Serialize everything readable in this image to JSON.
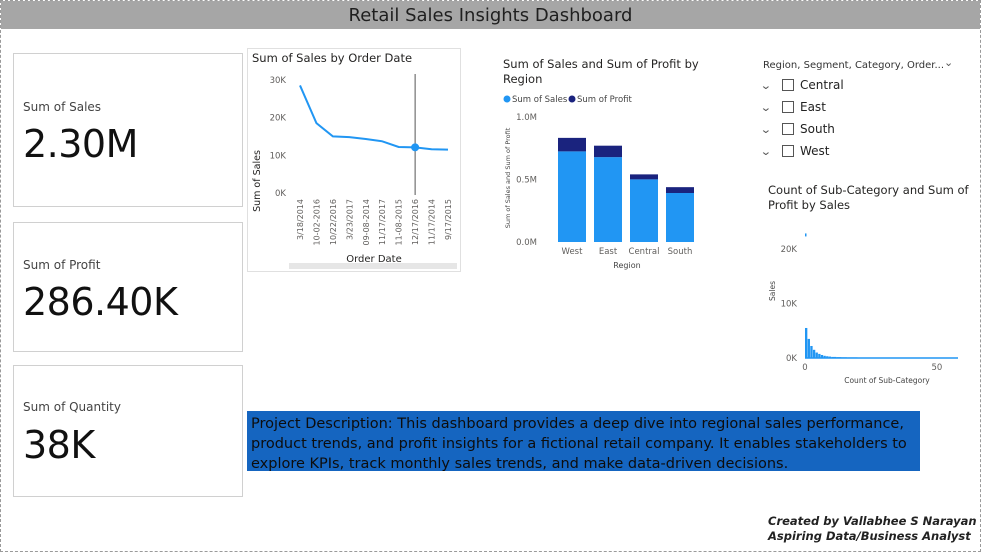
{
  "header": {
    "title": "Retail Sales Insights Dashboard"
  },
  "kpis": [
    {
      "label": "Sum of Sales",
      "value": "2.30M"
    },
    {
      "label": "Sum of Profit",
      "value": "286.40K"
    },
    {
      "label": "Sum of Quantity",
      "value": "38K"
    }
  ],
  "line_chart": {
    "title": "Sum of Sales by Order Date",
    "xlabel": "Order Date",
    "ylabel": "Sum of Sales",
    "yticks": [
      "30K",
      "20K",
      "10K",
      "0K"
    ]
  },
  "bar_chart": {
    "title": "Sum of Sales and Sum of Profit by Region",
    "legend": [
      "Sum of Sales",
      "Sum of Profit"
    ],
    "xlabel": "Region",
    "ylabel": "Sum of Sales and Sum of Profit",
    "yticks": [
      "1.0M",
      "0.5M",
      "0.0M"
    ]
  },
  "slicer": {
    "header": "Region, Segment, Category, Order...",
    "items": [
      "Central",
      "East",
      "South",
      "West"
    ]
  },
  "histogram": {
    "title": "Count of Sub-Category and Sum of Profit by Sales",
    "xlabel": "Count of Sub-Category",
    "ylabel": "Sales",
    "yticks": [
      "20K",
      "10K",
      "0K"
    ],
    "xticks": [
      "0",
      "50"
    ]
  },
  "description": "Project Description: This dashboard provides a deep dive into regional sales performance, product trends, and profit insights for a fictional retail company. It enables stakeholders to explore KPIs, track monthly sales trends, and make data-driven decisions.",
  "credits": [
    "Created by Vallabhee S Narayan",
    "Aspiring Data/Business Analyst"
  ],
  "colors": {
    "sales": "#2196f3",
    "profit": "#1a237e",
    "line": "#2196f3",
    "banner": "#1565c0",
    "title_bar": "#a6a6a6"
  },
  "chart_data": [
    {
      "type": "line",
      "title": "Sum of Sales by Order Date",
      "xlabel": "Order Date",
      "ylabel": "Sum of Sales",
      "categories": [
        "3/18/2014",
        "10-02-2016",
        "10/22/2016",
        "3/23/2017",
        "09-08-2014",
        "11/17/2017",
        "11-08-2015",
        "12/17/2016",
        "11/17/2014",
        "9/17/2015"
      ],
      "values": [
        28500,
        18500,
        15000,
        14800,
        14300,
        13700,
        12200,
        12100,
        11600,
        11500
      ],
      "ylim": [
        0,
        31000
      ],
      "yticks": [
        0,
        10000,
        20000,
        30000
      ],
      "highlight_index": 7
    },
    {
      "type": "bar",
      "title": "Sum of Sales and Sum of Profit by Region",
      "xlabel": "Region",
      "ylabel": "Sum of Sales and Sum of Profit",
      "categories": [
        "West",
        "East",
        "Central",
        "South"
      ],
      "series": [
        {
          "name": "Sum of Sales",
          "values": [
            725000,
            679000,
            501000,
            392000
          ]
        },
        {
          "name": "Sum of Profit",
          "values": [
            108000,
            91500,
            40000,
            46700
          ]
        }
      ],
      "stacked": true,
      "ylim": [
        0,
        1000000
      ],
      "yticks": [
        0,
        500000,
        1000000
      ],
      "legend": "top-left"
    },
    {
      "type": "bar",
      "title": "Count of Sub-Category and Sum of Profit by Sales",
      "xlabel": "Count of Sub-Category",
      "ylabel": "Sales",
      "x": [
        0,
        1,
        2,
        3,
        4,
        5,
        6,
        7,
        8,
        9,
        10,
        12,
        14,
        16,
        20,
        25,
        30,
        35,
        40,
        45,
        50,
        55
      ],
      "values": [
        5500,
        3500,
        2200,
        1500,
        1000,
        750,
        550,
        400,
        320,
        260,
        200,
        160,
        130,
        110,
        90,
        70,
        60,
        50,
        45,
        40,
        35,
        30
      ],
      "outlier": {
        "x": 0,
        "y": 22638
      },
      "xlim": [
        0,
        58
      ],
      "ylim": [
        0,
        24000
      ],
      "yticks": [
        0,
        10000,
        20000
      ]
    }
  ]
}
